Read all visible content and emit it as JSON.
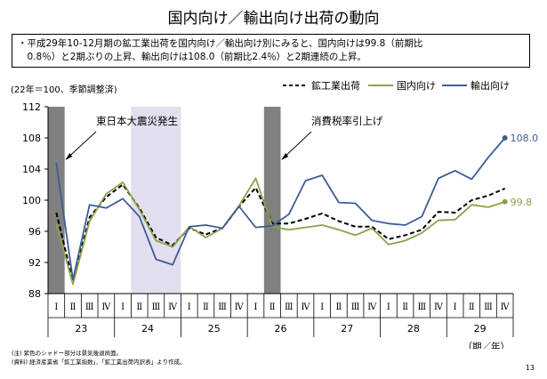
{
  "page": {
    "title": "国内向け／輸出向け出荷の動向",
    "summary_line1": "・平成29年10-12月期の鉱工業出荷を国内向け／輸出向け別にみると、国内向けは99.8（前期比",
    "summary_line2": "　0.8％）と2期ぶりの上昇、輸出向けは108.0（前期比2.4％）と2期連続の上昇。",
    "note1": "(注) 紫色のシャドー部分は景気後退局面。",
    "note2": "(資料) 経済産業省「鉱工業指数」、「鉱工業出荷内訳表」より作成。",
    "page_number": "13"
  },
  "colors": {
    "domestic": "#8aa34a",
    "export": "#3e5d97",
    "total": "#000000",
    "dark_shade": "#808080",
    "recession_shade": "#e3dff0"
  },
  "chart_data": {
    "type": "line",
    "ylabel": "(22年＝100、季節調整済)",
    "ylim": [
      88,
      112
    ],
    "yticks": [
      88,
      92,
      96,
      100,
      104,
      108,
      112
    ],
    "quarter_labels": [
      "Ⅰ",
      "Ⅱ",
      "Ⅲ",
      "Ⅳ",
      "Ⅰ",
      "Ⅱ",
      "Ⅲ",
      "Ⅳ",
      "Ⅰ",
      "Ⅱ",
      "Ⅲ",
      "Ⅳ",
      "Ⅰ",
      "Ⅱ",
      "Ⅲ",
      "Ⅳ",
      "Ⅰ",
      "Ⅱ",
      "Ⅲ",
      "Ⅳ",
      "Ⅰ",
      "Ⅱ",
      "Ⅲ",
      "Ⅳ",
      "Ⅰ",
      "Ⅱ",
      "Ⅲ",
      "Ⅳ"
    ],
    "year_labels": [
      "23",
      "24",
      "25",
      "26",
      "27",
      "28",
      "29"
    ],
    "x_unit_label": "（期／年）",
    "grid": false,
    "legend_position": "top-right",
    "series": [
      {
        "name": "鉱工業出荷",
        "style": "dashed",
        "color": "#000000",
        "values": [
          98.4,
          89.6,
          97.8,
          100.4,
          102.0,
          99.0,
          95.2,
          94.2,
          96.4,
          95.6,
          96.4,
          99.2,
          101.6,
          97.0,
          97.0,
          97.6,
          98.3,
          97.3,
          96.6,
          96.6,
          95.0,
          95.5,
          96.2,
          98.5,
          98.4,
          100.0,
          100.6,
          101.5
        ]
      },
      {
        "name": "国内向け",
        "style": "solid",
        "color": "#8aa34a",
        "values": [
          97.0,
          89.2,
          97.3,
          100.8,
          102.3,
          98.8,
          94.8,
          94.0,
          96.6,
          95.2,
          96.4,
          99.3,
          102.8,
          96.6,
          96.2,
          96.5,
          96.8,
          96.2,
          95.5,
          96.4,
          94.3,
          94.8,
          95.8,
          97.4,
          97.5,
          99.4,
          99.1,
          99.8
        ]
      },
      {
        "name": "輸出向け",
        "style": "solid",
        "color": "#3e5d97",
        "values": [
          104.8,
          89.8,
          99.4,
          99.0,
          100.2,
          97.9,
          92.4,
          91.7,
          96.6,
          96.8,
          96.4,
          99.2,
          96.5,
          96.7,
          98.2,
          102.5,
          103.2,
          99.7,
          99.6,
          97.4,
          97.0,
          96.8,
          97.9,
          102.8,
          103.8,
          102.7,
          105.5,
          108.0
        ]
      }
    ],
    "end_labels": [
      {
        "series": "輸出向け",
        "text": "108.0"
      },
      {
        "series": "国内向け",
        "text": "99.8"
      }
    ],
    "annotations": [
      {
        "text": "東日本大震災発生",
        "quarter_index": 0
      },
      {
        "text": "消費税率引上げ",
        "quarter_index": 13
      }
    ],
    "shaded_periods": [
      {
        "kind": "event",
        "start_index": 0,
        "end_index": 0
      },
      {
        "kind": "recession",
        "start_index": 5,
        "end_index": 7
      },
      {
        "kind": "event",
        "start_index": 13,
        "end_index": 13
      }
    ]
  }
}
